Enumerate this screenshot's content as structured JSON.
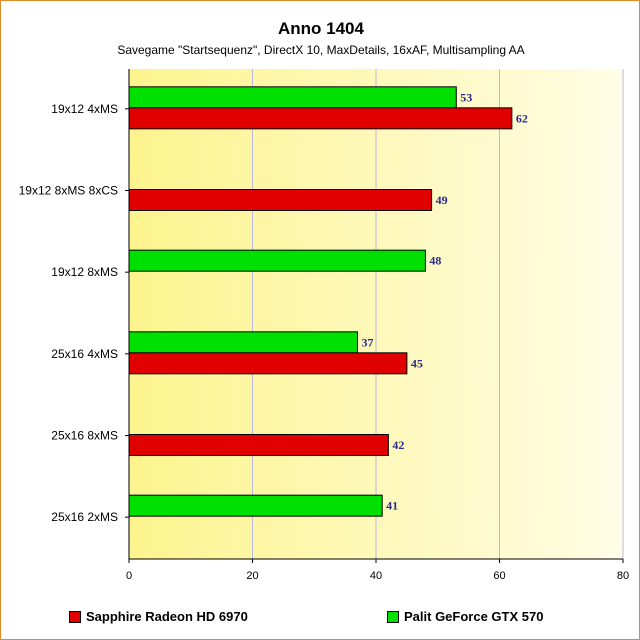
{
  "chart_data": {
    "type": "bar",
    "orientation": "horizontal",
    "title": "Anno 1404",
    "subtitle": "Savegame \"Startsequenz\", DirectX 10, MaxDetails, 16xAF, Multisampling AA",
    "categories": [
      "19x12 4xMS",
      "19x12 8xMS 8xCS",
      "19x12 8xMS",
      "25x16 4xMS",
      "25x16 8xMS",
      "25x16 2xMS"
    ],
    "series": [
      {
        "name": "Palit GeForce GTX 570",
        "color": "#00e000",
        "values": [
          53,
          null,
          48,
          37,
          null,
          41
        ]
      },
      {
        "name": "Sapphire Radeon HD 6970",
        "color": "#e00000",
        "values": [
          62,
          49,
          null,
          45,
          42,
          null
        ]
      }
    ],
    "xlim": [
      0,
      80
    ],
    "xticks": [
      "0",
      "20",
      "40",
      "60",
      "80"
    ],
    "grid": true,
    "legend_position": "bottom",
    "legend": [
      {
        "label": "Sapphire Radeon HD 6970",
        "color": "#e00000"
      },
      {
        "label": "Palit GeForce GTX 570",
        "color": "#00e000"
      }
    ]
  }
}
